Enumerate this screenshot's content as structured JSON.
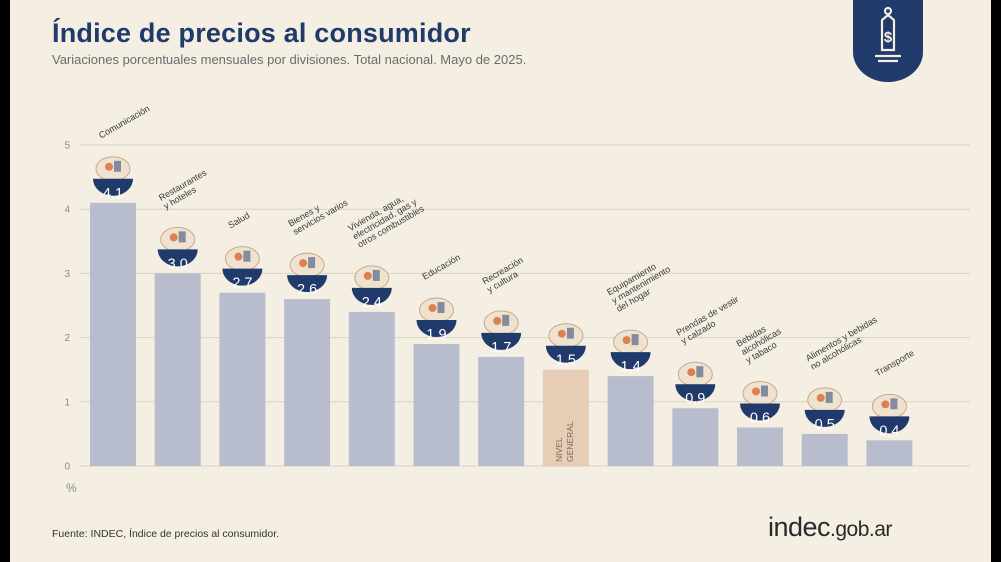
{
  "header": {
    "title": "Índice de precios al consumidor",
    "subtitle": "Variaciones porcentuales mensuales por divisiones. Total nacional. Mayo de 2025."
  },
  "footer": {
    "source": "Fuente: INDEC, Índice de precios al consumidor.",
    "brand_main": "indec",
    "brand_domain": ".gob.ar"
  },
  "badge": {
    "symbol": "$",
    "icon": "price-tag-icon"
  },
  "colors": {
    "background": "#f4efe2",
    "bar": "#b7bdcd",
    "bar_highlight": "#e8cdb6",
    "badge": "#1f3a6b",
    "bubble": "#1f3a6b",
    "title": "#1f3a6b"
  },
  "chart_data": {
    "type": "bar",
    "unit_label": "%",
    "ylim": [
      0,
      5
    ],
    "yticks": [
      "0",
      "1",
      "2",
      "3",
      "4",
      "5"
    ],
    "grid": true,
    "categories": [
      "Comunicación",
      "Restaurantes y hoteles",
      "Salud",
      "Bienes y servicios varios",
      "Vivienda, agua, electricidad, gas y otros combustibles",
      "Educación",
      "Recreación y cultura",
      "NIVEL GENERAL",
      "Equipamiento y mantenimiento del hogar",
      "Prendas de vestir y calzado",
      "Bebidas alcohólicas y tabaco",
      "Alimentos y bebidas no alcohólicas",
      "Transporte"
    ],
    "values": [
      4.1,
      3.0,
      2.7,
      2.6,
      2.4,
      1.9,
      1.7,
      1.5,
      1.4,
      0.9,
      0.6,
      0.5,
      0.4
    ],
    "value_labels": [
      "4,1",
      "3,0",
      "2,7",
      "2,6",
      "2,4",
      "1,9",
      "1,7",
      "1,5",
      "1,4",
      "0,9",
      "0,6",
      "0,5",
      "0,4"
    ],
    "label_lines": [
      [
        "Comunicación"
      ],
      [
        "Restaurantes",
        "y hoteles"
      ],
      [
        "Salud"
      ],
      [
        "Bienes y",
        "servicios varios"
      ],
      [
        "Vivienda, agua,",
        "electricidad, gas y",
        "otros combustibles"
      ],
      [
        "Educación"
      ],
      [
        "Recreación",
        "y cultura"
      ],
      [
        "NIVEL",
        "GENERAL"
      ],
      [
        "Equipamiento",
        "y mantenimiento",
        "del hogar"
      ],
      [
        "Prendas de vestir",
        "y calzado"
      ],
      [
        "Bebidas",
        "alcohólicas",
        "y tabaco"
      ],
      [
        "Alimentos y bebidas",
        "no alcohólicas"
      ],
      [
        "Transporte"
      ]
    ],
    "icons": [
      "phone-icon",
      "cutlery-icon",
      "first-aid-icon",
      "razor-icon",
      "lightbulb-icon",
      "notebook-icon",
      "beach-umbrella-icon",
      "shopping-basket-icon",
      "air-conditioner-icon",
      "tshirt-icon",
      "bottles-icon",
      "chicken-icon",
      "transit-card-icon"
    ],
    "highlight_index": 7
  }
}
